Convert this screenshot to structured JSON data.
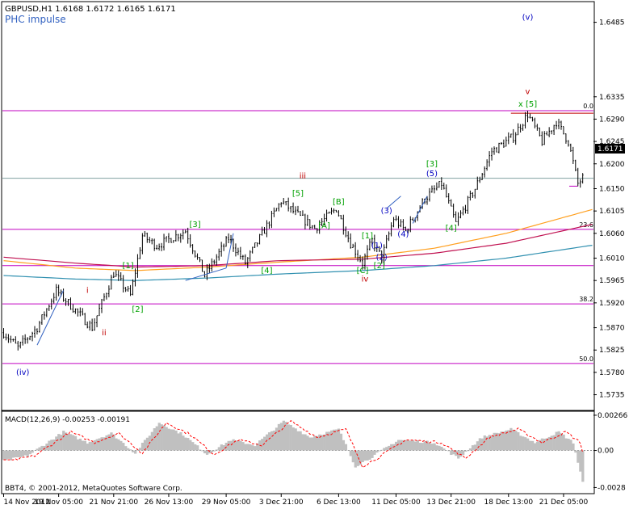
{
  "header": {
    "symbol_line": "GBPUSD,H1  1.6168 1.6172 1.6165 1.6171",
    "subtitle": "PHC impulse"
  },
  "colors": {
    "frame": "#000000",
    "candle": "#000000",
    "level_line": "#c000c0",
    "current_line": "#7fa0a0",
    "fib_label": "#000000",
    "wave_red": "#c00000",
    "wave_green": "#00a000",
    "wave_blue": "#0000c0",
    "ma_orange": "#ffa020",
    "ma_crimson": "#c01050",
    "ma_teal": "#3090b0",
    "trend_blue": "#3060c0",
    "macd_hist": "#c0c0c0",
    "macd_signal": "#ff0000",
    "price_box_bg": "#000000",
    "price_box_fg": "#ffffff",
    "bid_line": "#c00000",
    "stop_line": "#c000c0"
  },
  "price_panel": {
    "current_price_label": "1.6171"
  },
  "macd_panel": {
    "label": "MACD(12,26,9) -0.00253 -0.00191",
    "axis": [
      {
        "value": 0.00266,
        "label": "0.00266"
      },
      {
        "value": 0.0,
        "label": "0.00"
      },
      {
        "value": -0.0028,
        "label": "-0.0028"
      }
    ]
  },
  "copyright": "BBT4, © 2001-2012, MetaQuotes Software Corp.",
  "chart_data": {
    "type": "candlestick",
    "title": "GBPUSD,H1",
    "ylim": [
      1.5705,
      1.6525
    ],
    "y_ticks": [
      {
        "value": 1.6485,
        "label": "1.6485"
      },
      {
        "value": 1.6335,
        "label": "1.6335"
      },
      {
        "value": 1.629,
        "label": "1.6290"
      },
      {
        "value": 1.6245,
        "label": "1.6245"
      },
      {
        "value": 1.62,
        "label": "1.6200"
      },
      {
        "value": 1.615,
        "label": "1.6150"
      },
      {
        "value": 1.6105,
        "label": "1.6105"
      },
      {
        "value": 1.606,
        "label": "1.6060"
      },
      {
        "value": 1.601,
        "label": "1.6010"
      },
      {
        "value": 1.5965,
        "label": "1.5965"
      },
      {
        "value": 1.592,
        "label": "1.5920"
      },
      {
        "value": 1.587,
        "label": "1.5870"
      },
      {
        "value": 1.5825,
        "label": "1.5825"
      },
      {
        "value": 1.578,
        "label": "1.5780"
      },
      {
        "value": 1.5735,
        "label": "1.5735"
      }
    ],
    "x_ticks": [
      {
        "bar": 0,
        "label": "14 Nov 2012"
      },
      {
        "bar": 23,
        "label": "19 Nov 05:00"
      },
      {
        "bar": 46,
        "label": "21 Nov 21:00"
      },
      {
        "bar": 69,
        "label": "26 Nov 13:00"
      },
      {
        "bar": 93,
        "label": "29 Nov 05:00"
      },
      {
        "bar": 116,
        "label": "3 Dec 21:00"
      },
      {
        "bar": 140,
        "label": "6 Dec 13:00"
      },
      {
        "bar": 164,
        "label": "11 Dec 05:00"
      },
      {
        "bar": 187,
        "label": "13 Dec 21:00"
      },
      {
        "bar": 211,
        "label": "18 Dec 13:00"
      },
      {
        "bar": 234,
        "label": "21 Dec 05:00"
      }
    ],
    "fib_levels": [
      {
        "label": "0.0",
        "price": 1.6307
      },
      {
        "label": "23.6",
        "price": 1.6068
      },
      {
        "label": "38.2",
        "price": 1.5918
      },
      {
        "label": "50.0",
        "price": 1.5798
      }
    ],
    "extra_levels": [
      {
        "name": "level-low",
        "price": 1.5995
      },
      {
        "name": "level-current",
        "price": 1.6171
      },
      {
        "name": "level-bid",
        "price": 1.6302
      }
    ],
    "anchors": [
      {
        "bar": 0,
        "price": 1.586
      },
      {
        "bar": 6,
        "price": 1.583
      },
      {
        "bar": 14,
        "price": 1.587
      },
      {
        "bar": 22,
        "price": 1.5945
      },
      {
        "bar": 30,
        "price": 1.5905
      },
      {
        "bar": 37,
        "price": 1.587
      },
      {
        "bar": 46,
        "price": 1.598
      },
      {
        "bar": 53,
        "price": 1.5935
      },
      {
        "bar": 58,
        "price": 1.6055
      },
      {
        "bar": 64,
        "price": 1.6035
      },
      {
        "bar": 76,
        "price": 1.6065
      },
      {
        "bar": 84,
        "price": 1.5975
      },
      {
        "bar": 94,
        "price": 1.605
      },
      {
        "bar": 101,
        "price": 1.6
      },
      {
        "bar": 116,
        "price": 1.6125
      },
      {
        "bar": 122,
        "price": 1.61
      },
      {
        "bar": 130,
        "price": 1.607
      },
      {
        "bar": 139,
        "price": 1.611
      },
      {
        "bar": 145,
        "price": 1.604
      },
      {
        "bar": 150,
        "price": 1.6
      },
      {
        "bar": 154,
        "price": 1.6045
      },
      {
        "bar": 158,
        "price": 1.601
      },
      {
        "bar": 163,
        "price": 1.609
      },
      {
        "bar": 168,
        "price": 1.6065
      },
      {
        "bar": 176,
        "price": 1.613
      },
      {
        "bar": 183,
        "price": 1.616
      },
      {
        "bar": 189,
        "price": 1.608
      },
      {
        "bar": 197,
        "price": 1.615
      },
      {
        "bar": 204,
        "price": 1.6225
      },
      {
        "bar": 213,
        "price": 1.6255
      },
      {
        "bar": 219,
        "price": 1.63
      },
      {
        "bar": 225,
        "price": 1.6245
      },
      {
        "bar": 231,
        "price": 1.6285
      },
      {
        "bar": 236,
        "price": 1.6245
      },
      {
        "bar": 240,
        "price": 1.616
      },
      {
        "bar": 242,
        "price": 1.6171
      }
    ],
    "moving_averages": [
      {
        "name": "ma-orange",
        "points": [
          [
            0,
            1.6005
          ],
          [
            30,
            1.599
          ],
          [
            55,
            1.5985
          ],
          [
            85,
            1.5992
          ],
          [
            115,
            1.6002
          ],
          [
            150,
            1.6012
          ],
          [
            180,
            1.603
          ],
          [
            210,
            1.606
          ],
          [
            246,
            1.6108
          ]
        ]
      },
      {
        "name": "ma-crimson",
        "points": [
          [
            0,
            1.6012
          ],
          [
            30,
            1.6
          ],
          [
            55,
            1.5992
          ],
          [
            85,
            1.5995
          ],
          [
            115,
            1.6005
          ],
          [
            150,
            1.6008
          ],
          [
            180,
            1.602
          ],
          [
            210,
            1.604
          ],
          [
            246,
            1.6078
          ]
        ]
      },
      {
        "name": "ma-teal",
        "points": [
          [
            0,
            1.5975
          ],
          [
            30,
            1.5968
          ],
          [
            55,
            1.5965
          ],
          [
            85,
            1.597
          ],
          [
            115,
            1.5978
          ],
          [
            150,
            1.5985
          ],
          [
            180,
            1.5995
          ],
          [
            210,
            1.601
          ],
          [
            246,
            1.6036
          ]
        ]
      }
    ],
    "trend_lines": [
      {
        "from": [
          14,
          1.5835
        ],
        "to": [
          25,
          1.5945
        ]
      },
      {
        "from": [
          76,
          1.5965
        ],
        "to": [
          93,
          1.599
        ]
      },
      {
        "from": [
          93,
          1.599
        ],
        "to": [
          96,
          1.606
        ]
      },
      {
        "from": [
          160,
          1.611
        ],
        "to": [
          166,
          1.6135
        ]
      },
      {
        "from": [
          171,
          1.608
        ],
        "to": [
          177,
          1.6135
        ]
      }
    ],
    "wave_labels": [
      {
        "text": "(v)",
        "bar": 219,
        "price": 1.649,
        "color": "wave_blue"
      },
      {
        "text": "v",
        "bar": 219,
        "price": 1.634,
        "color": "wave_red"
      },
      {
        "text": "x [5]",
        "bar": 219,
        "price": 1.6315,
        "color": "wave_green"
      },
      {
        "text": "iii",
        "bar": 125,
        "price": 1.617,
        "color": "wave_red"
      },
      {
        "text": "[5]",
        "bar": 123,
        "price": 1.6135,
        "color": "wave_green"
      },
      {
        "text": "[B]",
        "bar": 140,
        "price": 1.6118,
        "color": "wave_green"
      },
      {
        "text": "[A]",
        "bar": 134,
        "price": 1.607,
        "color": "wave_green"
      },
      {
        "text": "[3]",
        "bar": 179,
        "price": 1.6195,
        "color": "wave_green"
      },
      {
        "text": "(5)",
        "bar": 179,
        "price": 1.6175,
        "color": "wave_blue"
      },
      {
        "text": "(3)",
        "bar": 160,
        "price": 1.61,
        "color": "wave_blue"
      },
      {
        "text": "(4)",
        "bar": 167,
        "price": 1.6053,
        "color": "wave_blue"
      },
      {
        "text": "[4]",
        "bar": 187,
        "price": 1.6065,
        "color": "wave_green"
      },
      {
        "text": "[1]",
        "bar": 152,
        "price": 1.605,
        "color": "wave_green"
      },
      {
        "text": "(1)",
        "bar": 156,
        "price": 1.603,
        "color": "wave_blue"
      },
      {
        "text": "(2)",
        "bar": 158,
        "price": 1.6007,
        "color": "wave_blue"
      },
      {
        "text": "[2]",
        "bar": 157,
        "price": 1.599,
        "color": "wave_green"
      },
      {
        "text": "[C]",
        "bar": 150,
        "price": 1.598,
        "color": "wave_green"
      },
      {
        "text": "iv",
        "bar": 151,
        "price": 1.5963,
        "color": "wave_red"
      },
      {
        "text": "[3]",
        "bar": 80,
        "price": 1.6073,
        "color": "wave_green"
      },
      {
        "text": "[4]",
        "bar": 110,
        "price": 1.598,
        "color": "wave_green"
      },
      {
        "text": "[1]",
        "bar": 52,
        "price": 1.599,
        "color": "wave_green"
      },
      {
        "text": "[2]",
        "bar": 56,
        "price": 1.5902,
        "color": "wave_green"
      },
      {
        "text": "i",
        "bar": 35,
        "price": 1.594,
        "color": "wave_red"
      },
      {
        "text": "ii",
        "bar": 42,
        "price": 1.5855,
        "color": "wave_red"
      },
      {
        "text": "(iv)",
        "bar": 8,
        "price": 1.5775,
        "color": "wave_blue"
      }
    ],
    "macd": {
      "ylim": [
        -0.0032,
        0.0029
      ],
      "histogram_anchors": [
        [
          0,
          -0.0008
        ],
        [
          10,
          -0.0004
        ],
        [
          25,
          0.0014
        ],
        [
          35,
          0.0006
        ],
        [
          45,
          0.0013
        ],
        [
          55,
          -0.0002
        ],
        [
          65,
          0.0021
        ],
        [
          75,
          0.0012
        ],
        [
          85,
          -0.0003
        ],
        [
          95,
          0.0008
        ],
        [
          105,
          0.0004
        ],
        [
          117,
          0.0022
        ],
        [
          128,
          0.001
        ],
        [
          140,
          0.0016
        ],
        [
          147,
          -0.0012
        ],
        [
          153,
          -0.0006
        ],
        [
          165,
          0.0008
        ],
        [
          180,
          0.0006
        ],
        [
          190,
          -0.0006
        ],
        [
          200,
          0.001
        ],
        [
          212,
          0.0016
        ],
        [
          222,
          0.0006
        ],
        [
          232,
          0.0014
        ],
        [
          238,
          0.0006
        ],
        [
          242,
          -0.0024
        ]
      ],
      "signal_lag": 3
    }
  }
}
